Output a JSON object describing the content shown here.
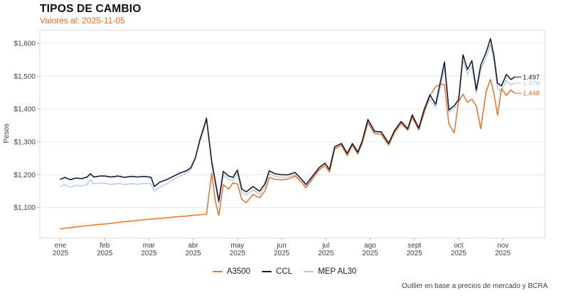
{
  "header": {
    "title": "TIPOS DE CAMBIO",
    "subtitle": "Valores al: 2025-11-05"
  },
  "footer": {
    "note": "Outlier en base a precios de mercado y BCRA"
  },
  "chart_data": {
    "type": "line",
    "title": "TIPOS DE CAMBIO",
    "subtitle": "Valores al: 2025-11-05",
    "ylabel": "Pesos",
    "xlabel": "",
    "grid": true,
    "legend_position": "bottom",
    "ylim": [
      1008,
      1640
    ],
    "y_ticks": [
      {
        "value": 1100,
        "label": "$1,100"
      },
      {
        "value": 1200,
        "label": "$1,200"
      },
      {
        "value": 1300,
        "label": "$1,300"
      },
      {
        "value": 1400,
        "label": "$1,400"
      },
      {
        "value": 1500,
        "label": "$1,500"
      },
      {
        "value": 1600,
        "label": "$1,600"
      }
    ],
    "x_ticks": [
      {
        "m": 0,
        "month": "ene",
        "year": "2025"
      },
      {
        "m": 1,
        "month": "feb",
        "year": "2025"
      },
      {
        "m": 2,
        "month": "mar",
        "year": "2025"
      },
      {
        "m": 3,
        "month": "abr",
        "year": "2025"
      },
      {
        "m": 4,
        "month": "may",
        "year": "2025"
      },
      {
        "m": 5,
        "month": "jun",
        "year": "2025"
      },
      {
        "m": 6,
        "month": "jul",
        "year": "2025"
      },
      {
        "m": 7,
        "month": "ago",
        "year": "2025"
      },
      {
        "m": 8,
        "month": "sept",
        "year": "2025"
      },
      {
        "m": 9,
        "month": "oct",
        "year": "2025"
      },
      {
        "m": 10,
        "month": "nov",
        "year": "2025"
      }
    ],
    "x": [
      0,
      0.1,
      0.22,
      0.35,
      0.48,
      0.6,
      0.68,
      0.75,
      0.9,
      1,
      1.15,
      1.3,
      1.45,
      1.6,
      1.75,
      1.9,
      2.05,
      2.12,
      2.25,
      2.4,
      2.55,
      2.7,
      2.85,
      2.95,
      3.05,
      3.15,
      3.25,
      3.3,
      3.42,
      3.5,
      3.58,
      3.68,
      3.8,
      3.9,
      4,
      4.1,
      4.2,
      4.35,
      4.5,
      4.62,
      4.72,
      4.85,
      5,
      5.15,
      5.3,
      5.45,
      5.55,
      5.7,
      5.85,
      5.98,
      6.08,
      6.2,
      6.35,
      6.48,
      6.6,
      6.72,
      6.82,
      6.95,
      7.1,
      7.25,
      7.42,
      7.55,
      7.7,
      7.85,
      7.95,
      8.1,
      8.22,
      8.35,
      8.48,
      8.6,
      8.68,
      8.78,
      8.9,
      9,
      9.1,
      9.2,
      9.3,
      9.4,
      9.5,
      9.62,
      9.72,
      9.8,
      9.88,
      9.97,
      10.08,
      10.18,
      10.27
    ],
    "series": [
      {
        "name": "A3500",
        "color": "#EC7224",
        "end_label": "1.448",
        "values": [
          1035,
          1037,
          1039,
          1041,
          1043,
          1045,
          1046,
          1047,
          1049,
          1050,
          1052,
          1055,
          1057,
          1059,
          1061,
          1063,
          1065,
          1066,
          1067,
          1069,
          1071,
          1073,
          1074,
          1076,
          1077,
          1078,
          1079,
          1080,
          1205,
          1120,
          1076,
          1170,
          1156,
          1175,
          1172,
          1125,
          1115,
          1140,
          1130,
          1150,
          1191,
          1186,
          1184,
          1187,
          1196,
          1178,
          1160,
          1188,
          1215,
          1228,
          1208,
          1278,
          1290,
          1258,
          1290,
          1263,
          1295,
          1358,
          1325,
          1322,
          1290,
          1328,
          1356,
          1335,
          1375,
          1336,
          1388,
          1440,
          1468,
          1475,
          1474,
          1355,
          1327,
          1423,
          1445,
          1420,
          1430,
          1409,
          1340,
          1452,
          1490,
          1446,
          1381,
          1462,
          1441,
          1458,
          1448
        ]
      },
      {
        "name": "CCL",
        "color": "#171B38",
        "end_label": "1.497",
        "values": [
          1186,
          1192,
          1185,
          1190,
          1188,
          1193,
          1203,
          1193,
          1196,
          1196,
          1193,
          1196,
          1192,
          1195,
          1193,
          1195,
          1192,
          1164,
          1178,
          1185,
          1195,
          1205,
          1212,
          1222,
          1252,
          1305,
          1348,
          1372,
          1240,
          1180,
          1120,
          1210,
          1196,
          1192,
          1214,
          1156,
          1148,
          1164,
          1150,
          1172,
          1212,
          1203,
          1200,
          1200,
          1207,
          1186,
          1170,
          1196,
          1222,
          1235,
          1216,
          1285,
          1295,
          1265,
          1295,
          1269,
          1302,
          1368,
          1332,
          1330,
          1296,
          1334,
          1362,
          1340,
          1382,
          1342,
          1398,
          1443,
          1414,
          1490,
          1543,
          1397,
          1410,
          1428,
          1565,
          1520,
          1547,
          1458,
          1533,
          1572,
          1614,
          1560,
          1478,
          1470,
          1505,
          1490,
          1497
        ]
      },
      {
        "name": "MEP AL30",
        "color": "#AFC9E6",
        "end_label": "1.479",
        "values": [
          1164,
          1170,
          1162,
          1168,
          1165,
          1170,
          1185,
          1172,
          1175,
          1174,
          1170,
          1174,
          1170,
          1173,
          1171,
          1174,
          1172,
          1150,
          1162,
          1172,
          1185,
          1196,
          1205,
          1216,
          1248,
          1300,
          1340,
          1368,
          1232,
          1170,
          1112,
          1200,
          1186,
          1182,
          1204,
          1146,
          1138,
          1154,
          1140,
          1163,
          1203,
          1195,
          1192,
          1193,
          1200,
          1178,
          1163,
          1190,
          1216,
          1228,
          1210,
          1280,
          1290,
          1260,
          1290,
          1265,
          1298,
          1365,
          1330,
          1328,
          1293,
          1332,
          1360,
          1338,
          1380,
          1338,
          1392,
          1430,
          1405,
          1472,
          1525,
          1390,
          1402,
          1418,
          1548,
          1505,
          1530,
          1448,
          1520,
          1556,
          1596,
          1545,
          1462,
          1455,
          1488,
          1472,
          1479
        ]
      }
    ]
  }
}
